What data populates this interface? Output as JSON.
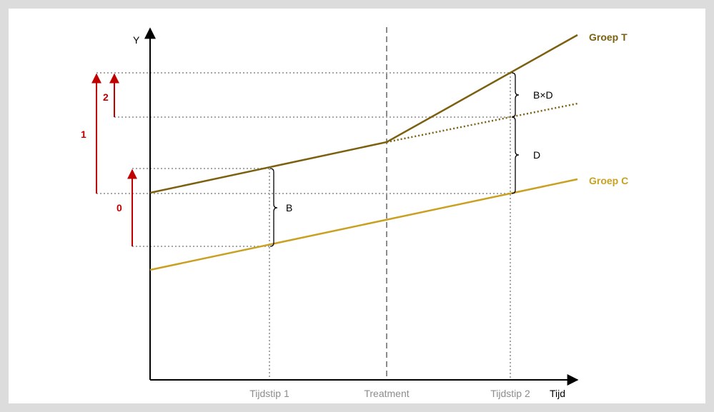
{
  "axes": {
    "y_label": "Y",
    "x_label": "Tijd"
  },
  "ticks": {
    "t1": "Tijdstip 1",
    "treatment": "Treatment",
    "t2": "Tijdstip 2"
  },
  "series": {
    "treatment": {
      "name": "Groep T",
      "color": "#7b6010"
    },
    "control": {
      "name": "Groep C",
      "color": "#c9a020"
    }
  },
  "braces": {
    "b": "B",
    "d": "D",
    "bxd": "B×D"
  },
  "markers": {
    "zero": "0",
    "one": "1",
    "two": "2"
  },
  "colors": {
    "marker": "#c00000",
    "grid": "#a6a6a6",
    "axis": "#000000"
  }
}
